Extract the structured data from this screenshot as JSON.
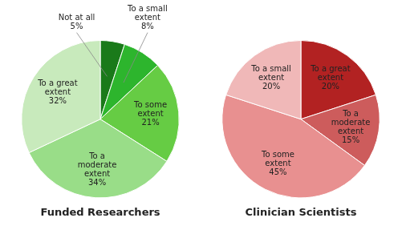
{
  "chart_data": [
    {
      "type": "pie",
      "title": "Funded Researchers",
      "categories": [
        "Not at all",
        "To a small\nextent",
        "To some\nextent",
        "To a\nmoderate\nextent",
        "To a great\nextent"
      ],
      "values": [
        5,
        8,
        21,
        34,
        32
      ],
      "value_labels": [
        "5%",
        "8%",
        "21%",
        "34%",
        "32%"
      ],
      "colors": [
        "#1a7a1a",
        "#2db52d",
        "#66cc44",
        "#99dd88",
        "#c8eabc"
      ],
      "data_labels": true
    },
    {
      "type": "pie",
      "title": "Clinician Scientists",
      "categories": [
        "To a great\nextent",
        "To a\nmoderate\nextent",
        "To some\nextent",
        "To a small\nextent"
      ],
      "values": [
        20,
        15,
        45,
        20
      ],
      "value_labels": [
        "20%",
        "15%",
        "45%",
        "20%"
      ],
      "colors": [
        "#b22222",
        "#cd5c5c",
        "#e89090",
        "#f0b8b8"
      ],
      "data_labels": true
    }
  ]
}
